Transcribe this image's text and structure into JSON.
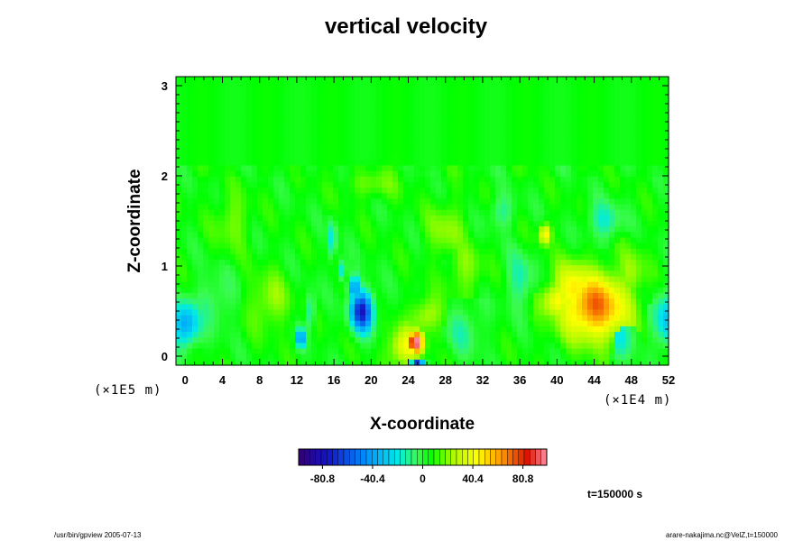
{
  "chart_data": {
    "type": "heatmap",
    "title": "vertical velocity",
    "xlabel": "X-coordinate",
    "ylabel": "Z-coordinate",
    "x_scale_note": "(×1E4 m)",
    "y_scale_note": "(×1E5 m)",
    "xlim": [
      -1,
      52
    ],
    "ylim": [
      -0.1,
      3.1
    ],
    "x_ticks": [
      "0",
      "4",
      "8",
      "12",
      "16",
      "20",
      "24",
      "28",
      "32",
      "36",
      "40",
      "44",
      "48",
      "52"
    ],
    "y_ticks": [
      "0",
      "1",
      "2",
      "3"
    ],
    "colorbar": {
      "min": -100,
      "max": 100,
      "ticks": [
        "-80.8",
        "-40.4",
        "0",
        "40.4",
        "80.8"
      ],
      "tick_values": [
        -80.8,
        -40.4,
        0,
        40.4,
        80.8
      ]
    },
    "background_value": 5,
    "features": [
      {
        "x": 44,
        "z": 0.55,
        "value": 65,
        "rx": 3.6,
        "rz": 0.36
      },
      {
        "x": 42,
        "z": 0.72,
        "value": 45,
        "rx": 2.4,
        "rz": 0.3
      },
      {
        "x": 40,
        "z": 0.62,
        "value": 40,
        "rx": 1.6,
        "rz": 0.2
      },
      {
        "x": 38.7,
        "z": 1.35,
        "value": 45,
        "rx": 0.6,
        "rz": 0.11
      },
      {
        "x": 24.8,
        "z": 0.15,
        "value": 95,
        "rx": 0.8,
        "rz": 0.12
      },
      {
        "x": 23.6,
        "z": 0.1,
        "value": 38,
        "rx": 1.6,
        "rz": 0.22
      },
      {
        "x": 25,
        "z": -0.08,
        "value": -75,
        "rx": 0.6,
        "rz": 0.05
      },
      {
        "x": 19,
        "z": 0.5,
        "value": -80,
        "rx": 1.2,
        "rz": 0.22
      },
      {
        "x": 18.2,
        "z": 0.75,
        "value": -50,
        "rx": 0.7,
        "rz": 0.14
      },
      {
        "x": 12.4,
        "z": 0.2,
        "value": -70,
        "rx": 0.35,
        "rz": 0.1
      },
      {
        "x": 13.5,
        "z": 0.5,
        "value": -30,
        "rx": 0.4,
        "rz": 0.2
      },
      {
        "x": 15.8,
        "z": 1.3,
        "value": -30,
        "rx": 0.4,
        "rz": 0.22
      },
      {
        "x": 16.8,
        "z": 0.95,
        "value": -30,
        "rx": 0.5,
        "rz": 0.12
      },
      {
        "x": 0,
        "z": 0.35,
        "value": -45,
        "rx": 1.5,
        "rz": 0.25
      },
      {
        "x": 51.8,
        "z": 0.4,
        "value": -35,
        "rx": 1.4,
        "rz": 0.3
      },
      {
        "x": 47,
        "z": 0.25,
        "value": -22,
        "rx": 1.6,
        "rz": 0.25
      },
      {
        "x": 36,
        "z": 0.85,
        "value": -18,
        "rx": 1.5,
        "rz": 0.3
      },
      {
        "x": 30,
        "z": 0.3,
        "value": -15,
        "rx": 2.0,
        "rz": 0.28
      },
      {
        "x": 45,
        "z": 1.5,
        "value": -22,
        "rx": 1.8,
        "rz": 0.2
      },
      {
        "x": 3,
        "z": 0.6,
        "value": -14,
        "rx": 2.0,
        "rz": 0.3
      },
      {
        "x": 34,
        "z": 1.6,
        "value": -16,
        "rx": 1.4,
        "rz": 0.18
      },
      {
        "x": 26,
        "z": 0.45,
        "value": 24,
        "rx": 1.5,
        "rz": 0.2
      },
      {
        "x": 9,
        "z": 0.6,
        "value": 18,
        "rx": 2.0,
        "rz": 0.3
      },
      {
        "x": 28,
        "z": 1.4,
        "value": 16,
        "rx": 2.0,
        "rz": 0.3
      },
      {
        "x": 48,
        "z": 0.9,
        "value": 18,
        "rx": 1.5,
        "rz": 0.3
      },
      {
        "x": 5,
        "z": 1.5,
        "value": 14,
        "rx": 1.8,
        "rz": 0.3
      },
      {
        "x": 30,
        "z": 0.95,
        "value": 14,
        "rx": 2.0,
        "rz": 0.3
      },
      {
        "x": 20,
        "z": 1.9,
        "value": 12,
        "rx": 3.0,
        "rz": 0.15
      }
    ]
  },
  "annotation": {
    "time": "t=150000 s"
  },
  "footer": {
    "left": "/usr/bin/gpview 2005-07-13",
    "right": "arare-nakajima.nc@VelZ,t=150000"
  }
}
